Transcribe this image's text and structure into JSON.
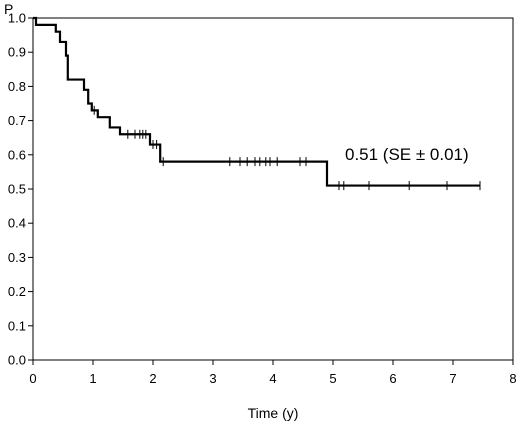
{
  "chart_data": {
    "type": "line",
    "ylabel": "P",
    "xlabel": "Time (y)",
    "xlim": [
      0,
      8
    ],
    "ylim": [
      0,
      1
    ],
    "x_ticks": [
      0,
      1,
      2,
      3,
      4,
      5,
      6,
      7,
      8
    ],
    "y_ticks": [
      0.0,
      0.1,
      0.2,
      0.3,
      0.4,
      0.5,
      0.6,
      0.7,
      0.8,
      0.9,
      1.0
    ],
    "x_tick_labels": [
      "0",
      "1",
      "2",
      "3",
      "4",
      "5",
      "6",
      "7",
      "8"
    ],
    "y_tick_labels": [
      "0.0",
      "0.1",
      "0.2",
      "0.3",
      "0.4",
      "0.5",
      "0.6",
      "0.7",
      "0.8",
      "0.9",
      "1.0"
    ],
    "grid": false,
    "annotation": "0.51 (SE ± 0.01)",
    "series": [
      {
        "step": true,
        "x": [
          0,
          0.05,
          0.38,
          0.45,
          0.55,
          0.58,
          0.85,
          0.92,
          0.98,
          1.08,
          1.28,
          1.45,
          1.95,
          2.12,
          4.9,
          7.45
        ],
        "y": [
          1.0,
          0.98,
          0.96,
          0.93,
          0.89,
          0.82,
          0.79,
          0.75,
          0.73,
          0.71,
          0.68,
          0.66,
          0.63,
          0.58,
          0.51,
          0.51
        ],
        "censored": [
          {
            "x": 1.02,
            "y": 0.73
          },
          {
            "x": 1.58,
            "y": 0.66
          },
          {
            "x": 1.7,
            "y": 0.66
          },
          {
            "x": 1.78,
            "y": 0.66
          },
          {
            "x": 1.83,
            "y": 0.66
          },
          {
            "x": 1.88,
            "y": 0.66
          },
          {
            "x": 2.0,
            "y": 0.63
          },
          {
            "x": 2.06,
            "y": 0.63
          },
          {
            "x": 2.17,
            "y": 0.58
          },
          {
            "x": 3.28,
            "y": 0.58
          },
          {
            "x": 3.45,
            "y": 0.58
          },
          {
            "x": 3.57,
            "y": 0.58
          },
          {
            "x": 3.7,
            "y": 0.58
          },
          {
            "x": 3.78,
            "y": 0.58
          },
          {
            "x": 3.88,
            "y": 0.58
          },
          {
            "x": 3.95,
            "y": 0.58
          },
          {
            "x": 4.07,
            "y": 0.58
          },
          {
            "x": 4.45,
            "y": 0.58
          },
          {
            "x": 4.55,
            "y": 0.58
          },
          {
            "x": 5.1,
            "y": 0.51
          },
          {
            "x": 5.18,
            "y": 0.51
          },
          {
            "x": 5.6,
            "y": 0.51
          },
          {
            "x": 6.27,
            "y": 0.51
          },
          {
            "x": 6.9,
            "y": 0.51
          },
          {
            "x": 7.45,
            "y": 0.51
          }
        ]
      }
    ]
  }
}
